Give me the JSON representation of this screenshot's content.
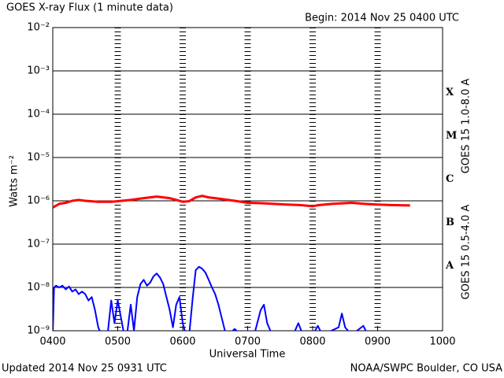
{
  "chart_data": {
    "type": "line",
    "title": "GOES X-ray Flux (1 minute data)",
    "subtitle": "Begin: 2014 Nov 25 0400 UTC",
    "y_label": "Watts m⁻²",
    "x_label": "Universal Time",
    "footer_left": "Updated 2014 Nov 25 0931 UTC",
    "footer_right": "NOAA/SWPC Boulder, CO USA",
    "y_log_scale": true,
    "grid": true,
    "xlim": [
      4,
      10
    ],
    "xticks": [
      {
        "value": 4,
        "label": "0400"
      },
      {
        "value": 5,
        "label": "0500"
      },
      {
        "value": 6,
        "label": "0600"
      },
      {
        "value": 7,
        "label": "0700"
      },
      {
        "value": 8,
        "label": "0800"
      },
      {
        "value": 9,
        "label": "0900"
      },
      {
        "value": 10,
        "label": "1000"
      }
    ],
    "ylim": [
      1e-09,
      0.01
    ],
    "yticks": [
      {
        "value": 1e-09,
        "label": "10⁻⁹"
      },
      {
        "value": 1e-08,
        "label": "10⁻⁸"
      },
      {
        "value": 1e-07,
        "label": "10⁻⁷"
      },
      {
        "value": 1e-06,
        "label": "10⁻⁶"
      },
      {
        "value": 1e-05,
        "label": "10⁻⁵"
      },
      {
        "value": 0.0001,
        "label": "10⁻⁴"
      },
      {
        "value": 0.001,
        "label": "10⁻³"
      },
      {
        "value": 0.01,
        "label": "10⁻²"
      }
    ],
    "flare_classes": [
      "A",
      "B",
      "C",
      "M",
      "X"
    ],
    "series": [
      {
        "name": "GOES 15 1.0-8.0 A",
        "color": "#ff0000",
        "x": [
          4.0,
          4.1,
          4.2,
          4.3,
          4.4,
          4.5,
          4.7,
          4.9,
          5.0,
          5.2,
          5.4,
          5.6,
          5.8,
          5.9,
          6.0,
          6.1,
          6.2,
          6.3,
          6.4,
          6.6,
          6.8,
          7.0,
          7.2,
          7.4,
          7.6,
          7.8,
          8.0,
          8.1,
          8.3,
          8.5,
          8.6,
          8.8,
          9.0,
          9.2,
          9.5
        ],
        "values": [
          7e-07,
          8.5e-07,
          9e-07,
          1e-06,
          1.05e-06,
          1e-06,
          9.5e-07,
          9.5e-07,
          9.8e-07,
          1.05e-06,
          1.15e-06,
          1.25e-06,
          1.15e-06,
          1.05e-06,
          9.5e-07,
          9.8e-07,
          1.2e-06,
          1.3e-06,
          1.2e-06,
          1.1e-06,
          1e-06,
          9e-07,
          8.8e-07,
          8.5e-07,
          8.2e-07,
          8e-07,
          7.5e-07,
          8e-07,
          8.5e-07,
          8.8e-07,
          9e-07,
          8.5e-07,
          8.2e-07,
          8e-07,
          7.8e-07
        ]
      },
      {
        "name": "GOES 15 0.5-4.0 A",
        "color": "#0000ff",
        "x": [
          4.0,
          4.02,
          4.05,
          4.1,
          4.15,
          4.2,
          4.25,
          4.3,
          4.35,
          4.4,
          4.45,
          4.5,
          4.55,
          4.6,
          4.65,
          4.7,
          4.75,
          4.85,
          4.9,
          4.95,
          5.0,
          5.05,
          5.1,
          5.15,
          5.2,
          5.25,
          5.3,
          5.35,
          5.4,
          5.45,
          5.5,
          5.55,
          5.6,
          5.65,
          5.7,
          5.75,
          5.8,
          5.85,
          5.9,
          5.95,
          6.0,
          6.05,
          6.1,
          6.15,
          6.2,
          6.25,
          6.3,
          6.35,
          6.4,
          6.45,
          6.5,
          6.55,
          6.6,
          6.65,
          6.7,
          6.8,
          6.9,
          7.0,
          7.1,
          7.2,
          7.25,
          7.3,
          7.35,
          7.5,
          7.7,
          7.78,
          7.85,
          8.0,
          8.08,
          8.15,
          8.4,
          8.45,
          8.5,
          8.6,
          8.78,
          8.85,
          9.5
        ],
        "values": [
          8e-10,
          1e-08,
          1.1e-08,
          1e-08,
          1.1e-08,
          9e-09,
          1.05e-08,
          8e-09,
          9e-09,
          7e-09,
          8e-09,
          7e-09,
          5e-09,
          6e-09,
          3e-09,
          1.2e-09,
          8e-10,
          1e-09,
          5e-09,
          1.5e-09,
          5e-09,
          2e-09,
          8e-10,
          1e-09,
          4e-09,
          1e-09,
          6e-09,
          1.2e-08,
          1.5e-08,
          1.1e-08,
          1.3e-08,
          1.8e-08,
          2.1e-08,
          1.7e-08,
          1.2e-08,
          6e-09,
          3e-09,
          1.2e-09,
          4e-09,
          6e-09,
          1.5e-09,
          8e-10,
          8e-10,
          5e-09,
          2.5e-08,
          3e-08,
          2.7e-08,
          2.2e-08,
          1.5e-08,
          1e-08,
          7e-09,
          4e-09,
          2e-09,
          1e-09,
          8e-10,
          1.1e-09,
          8e-10,
          1e-09,
          8e-10,
          3e-09,
          4e-09,
          1.5e-09,
          1e-09,
          8e-10,
          8e-10,
          1.5e-09,
          8e-10,
          8e-10,
          1.3e-09,
          8e-10,
          1.2e-09,
          2.5e-09,
          1.2e-09,
          8e-10,
          1.3e-09,
          8e-10,
          8e-10
        ]
      }
    ]
  }
}
